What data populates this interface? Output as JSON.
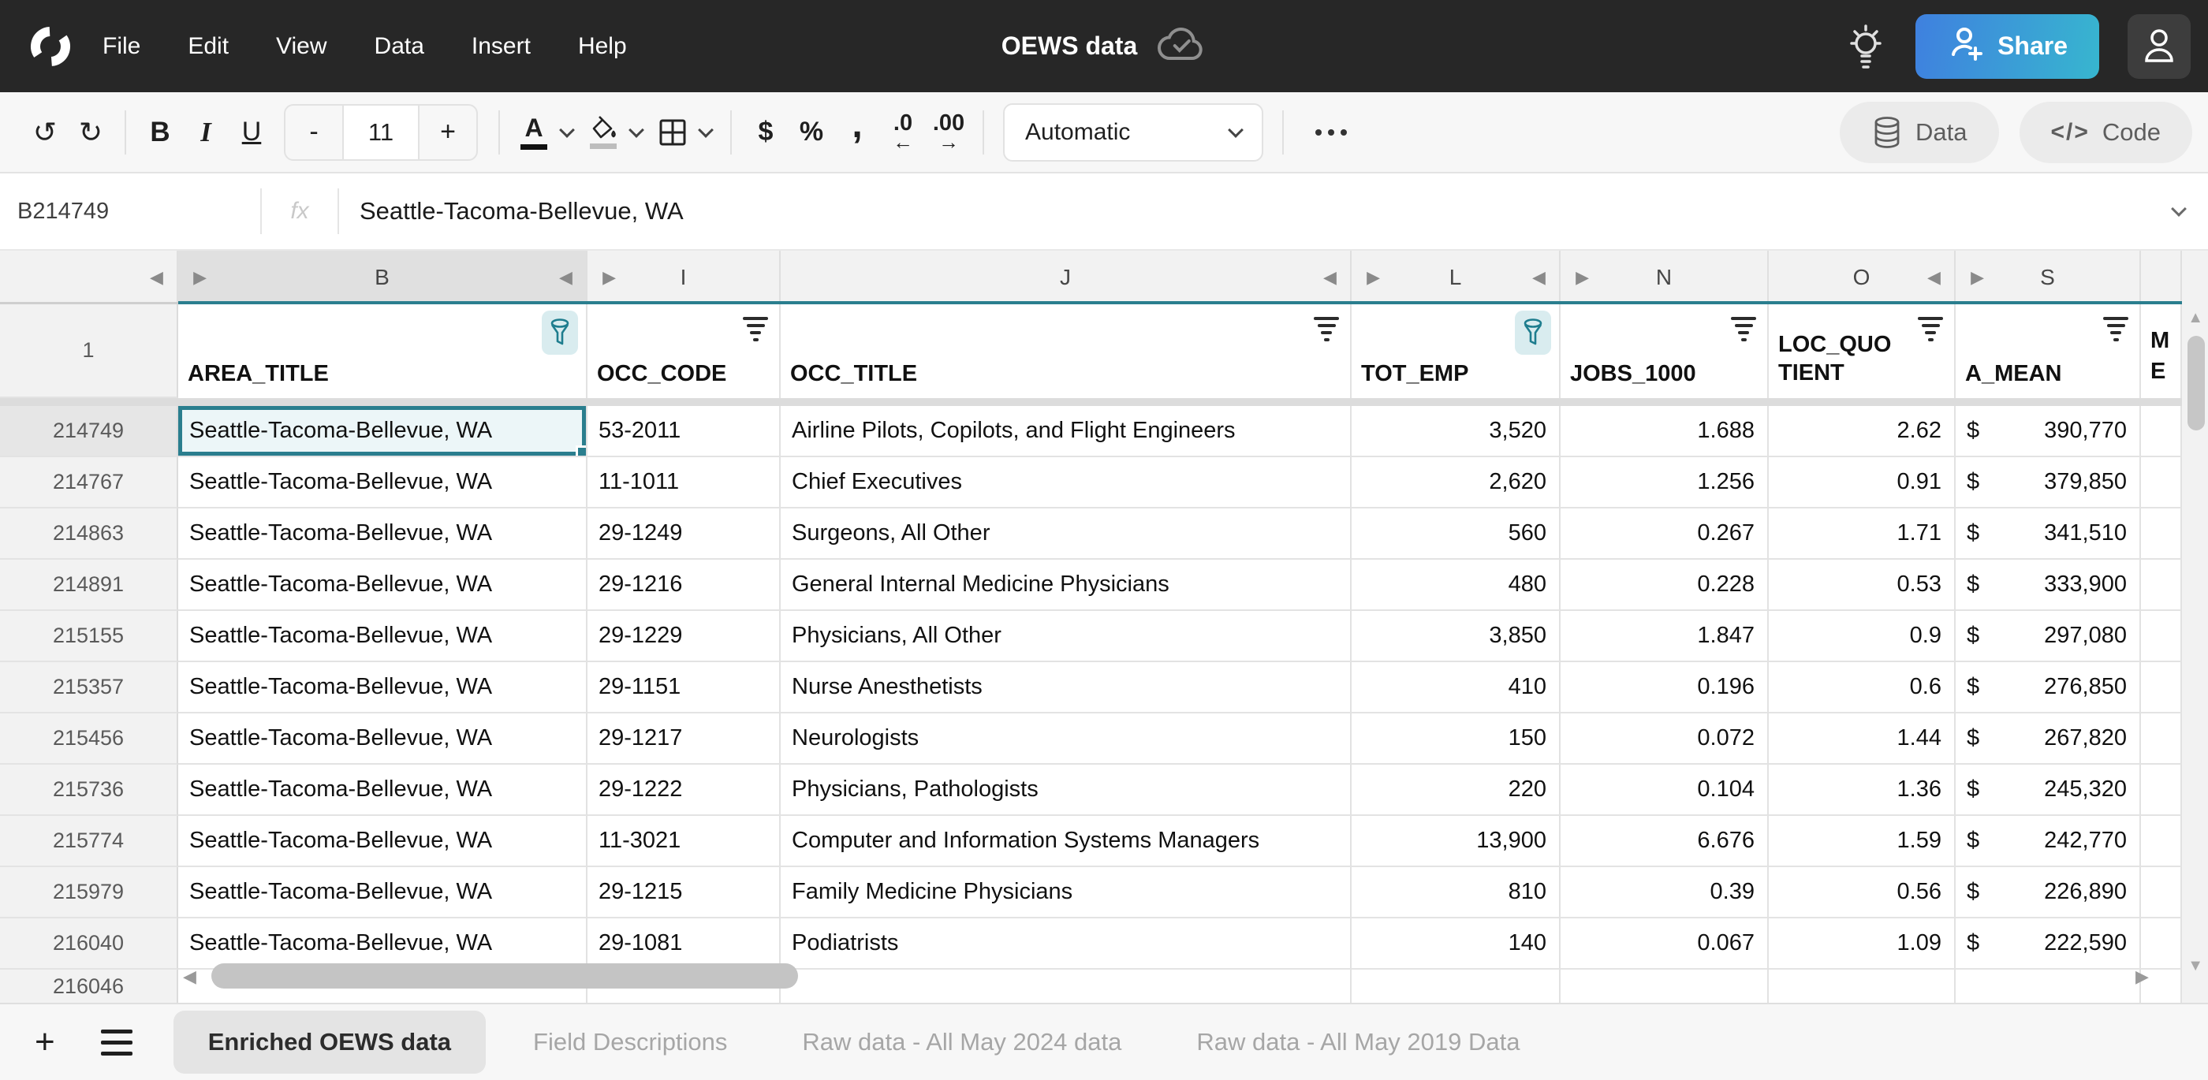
{
  "menubar": {
    "items": [
      "File",
      "Edit",
      "View",
      "Data",
      "Insert",
      "Help"
    ],
    "title": "OEWS data",
    "share_label": "Share"
  },
  "toolbar": {
    "bold": "B",
    "italic": "I",
    "underline": "U",
    "decrease_font": "-",
    "font_size": "11",
    "increase_font": "+",
    "color_letter": "A",
    "currency": "$",
    "percent": "%",
    "comma": ",",
    "decrease_decimals": ".0",
    "increase_decimals": ".00",
    "number_format": "Automatic",
    "data_label": "Data",
    "code_label": "Code",
    "code_glyph": "</>"
  },
  "icons": {
    "undo": "↺",
    "redo": "↻",
    "left_arrow": "←",
    "right_arrow": "→",
    "prev": "◀",
    "next": "▶",
    "up": "▲",
    "down": "▼"
  },
  "formula_bar": {
    "cell_ref": "B214749",
    "fx_label": "fx",
    "value": "Seattle-Tacoma-Bellevue, WA"
  },
  "grid": {
    "header_row_number": "1",
    "columns": [
      {
        "letter": "B",
        "field": "AREA_TITLE",
        "filter": "funnel",
        "selected": true
      },
      {
        "letter": "I",
        "field": "OCC_CODE",
        "filter": "lines"
      },
      {
        "letter": "J",
        "field": "OCC_TITLE",
        "filter": "lines"
      },
      {
        "letter": "L",
        "field": "TOT_EMP",
        "filter": "funnel"
      },
      {
        "letter": "N",
        "field": "JOBS_1000",
        "filter": "lines"
      },
      {
        "letter": "O",
        "field": "LOC_QUOTIENT",
        "filter": "lines",
        "wrap": true
      },
      {
        "letter": "S",
        "field": "A_MEAN",
        "filter": "lines"
      },
      {
        "letter": "",
        "field": "ME\nE",
        "filter": "none",
        "partial": true
      }
    ],
    "rows": [
      {
        "n": "214749",
        "area": "Seattle-Tacoma-Bellevue, WA",
        "occ": "53-2011",
        "title": "Airline Pilots, Copilots, and Flight Engineers",
        "emp": "3,520",
        "jobs": "1.688",
        "loc": "2.62",
        "cur": "$",
        "mean": "390,770"
      },
      {
        "n": "214767",
        "area": "Seattle-Tacoma-Bellevue, WA",
        "occ": "11-1011",
        "title": "Chief Executives",
        "emp": "2,620",
        "jobs": "1.256",
        "loc": "0.91",
        "cur": "$",
        "mean": "379,850"
      },
      {
        "n": "214863",
        "area": "Seattle-Tacoma-Bellevue, WA",
        "occ": "29-1249",
        "title": "Surgeons, All Other",
        "emp": "560",
        "jobs": "0.267",
        "loc": "1.71",
        "cur": "$",
        "mean": "341,510"
      },
      {
        "n": "214891",
        "area": "Seattle-Tacoma-Bellevue, WA",
        "occ": "29-1216",
        "title": "General Internal Medicine Physicians",
        "emp": "480",
        "jobs": "0.228",
        "loc": "0.53",
        "cur": "$",
        "mean": "333,900"
      },
      {
        "n": "215155",
        "area": "Seattle-Tacoma-Bellevue, WA",
        "occ": "29-1229",
        "title": "Physicians, All Other",
        "emp": "3,850",
        "jobs": "1.847",
        "loc": "0.9",
        "cur": "$",
        "mean": "297,080"
      },
      {
        "n": "215357",
        "area": "Seattle-Tacoma-Bellevue, WA",
        "occ": "29-1151",
        "title": "Nurse Anesthetists",
        "emp": "410",
        "jobs": "0.196",
        "loc": "0.6",
        "cur": "$",
        "mean": "276,850"
      },
      {
        "n": "215456",
        "area": "Seattle-Tacoma-Bellevue, WA",
        "occ": "29-1217",
        "title": "Neurologists",
        "emp": "150",
        "jobs": "0.072",
        "loc": "1.44",
        "cur": "$",
        "mean": "267,820"
      },
      {
        "n": "215736",
        "area": "Seattle-Tacoma-Bellevue, WA",
        "occ": "29-1222",
        "title": "Physicians, Pathologists",
        "emp": "220",
        "jobs": "0.104",
        "loc": "1.36",
        "cur": "$",
        "mean": "245,320"
      },
      {
        "n": "215774",
        "area": "Seattle-Tacoma-Bellevue, WA",
        "occ": "11-3021",
        "title": "Computer and Information Systems Managers",
        "emp": "13,900",
        "jobs": "6.676",
        "loc": "1.59",
        "cur": "$",
        "mean": "242,770"
      },
      {
        "n": "215979",
        "area": "Seattle-Tacoma-Bellevue, WA",
        "occ": "29-1215",
        "title": "Family Medicine Physicians",
        "emp": "810",
        "jobs": "0.39",
        "loc": "0.56",
        "cur": "$",
        "mean": "226,890"
      },
      {
        "n": "216040",
        "area": "Seattle-Tacoma-Bellevue, WA",
        "occ": "29-1081",
        "title": "Podiatrists",
        "emp": "140",
        "jobs": "0.067",
        "loc": "1.09",
        "cur": "$",
        "mean": "222,590"
      }
    ],
    "partial_row_number": "216046"
  },
  "sheet_tabs": {
    "tabs": [
      "Enriched OEWS data",
      "Field Descriptions",
      "Raw data - All May 2024 data",
      "Raw data - All May 2019 Data"
    ],
    "active_index": 0
  },
  "colors": {
    "accent_teal": "#2a7e8e",
    "accent_teal_light": "#d9ecef",
    "selected_cell_fill": "#ecf6f8",
    "topbar_background": "#272727",
    "share_gradient_start": "#3f80df",
    "share_gradient_end": "#37b6cf"
  }
}
